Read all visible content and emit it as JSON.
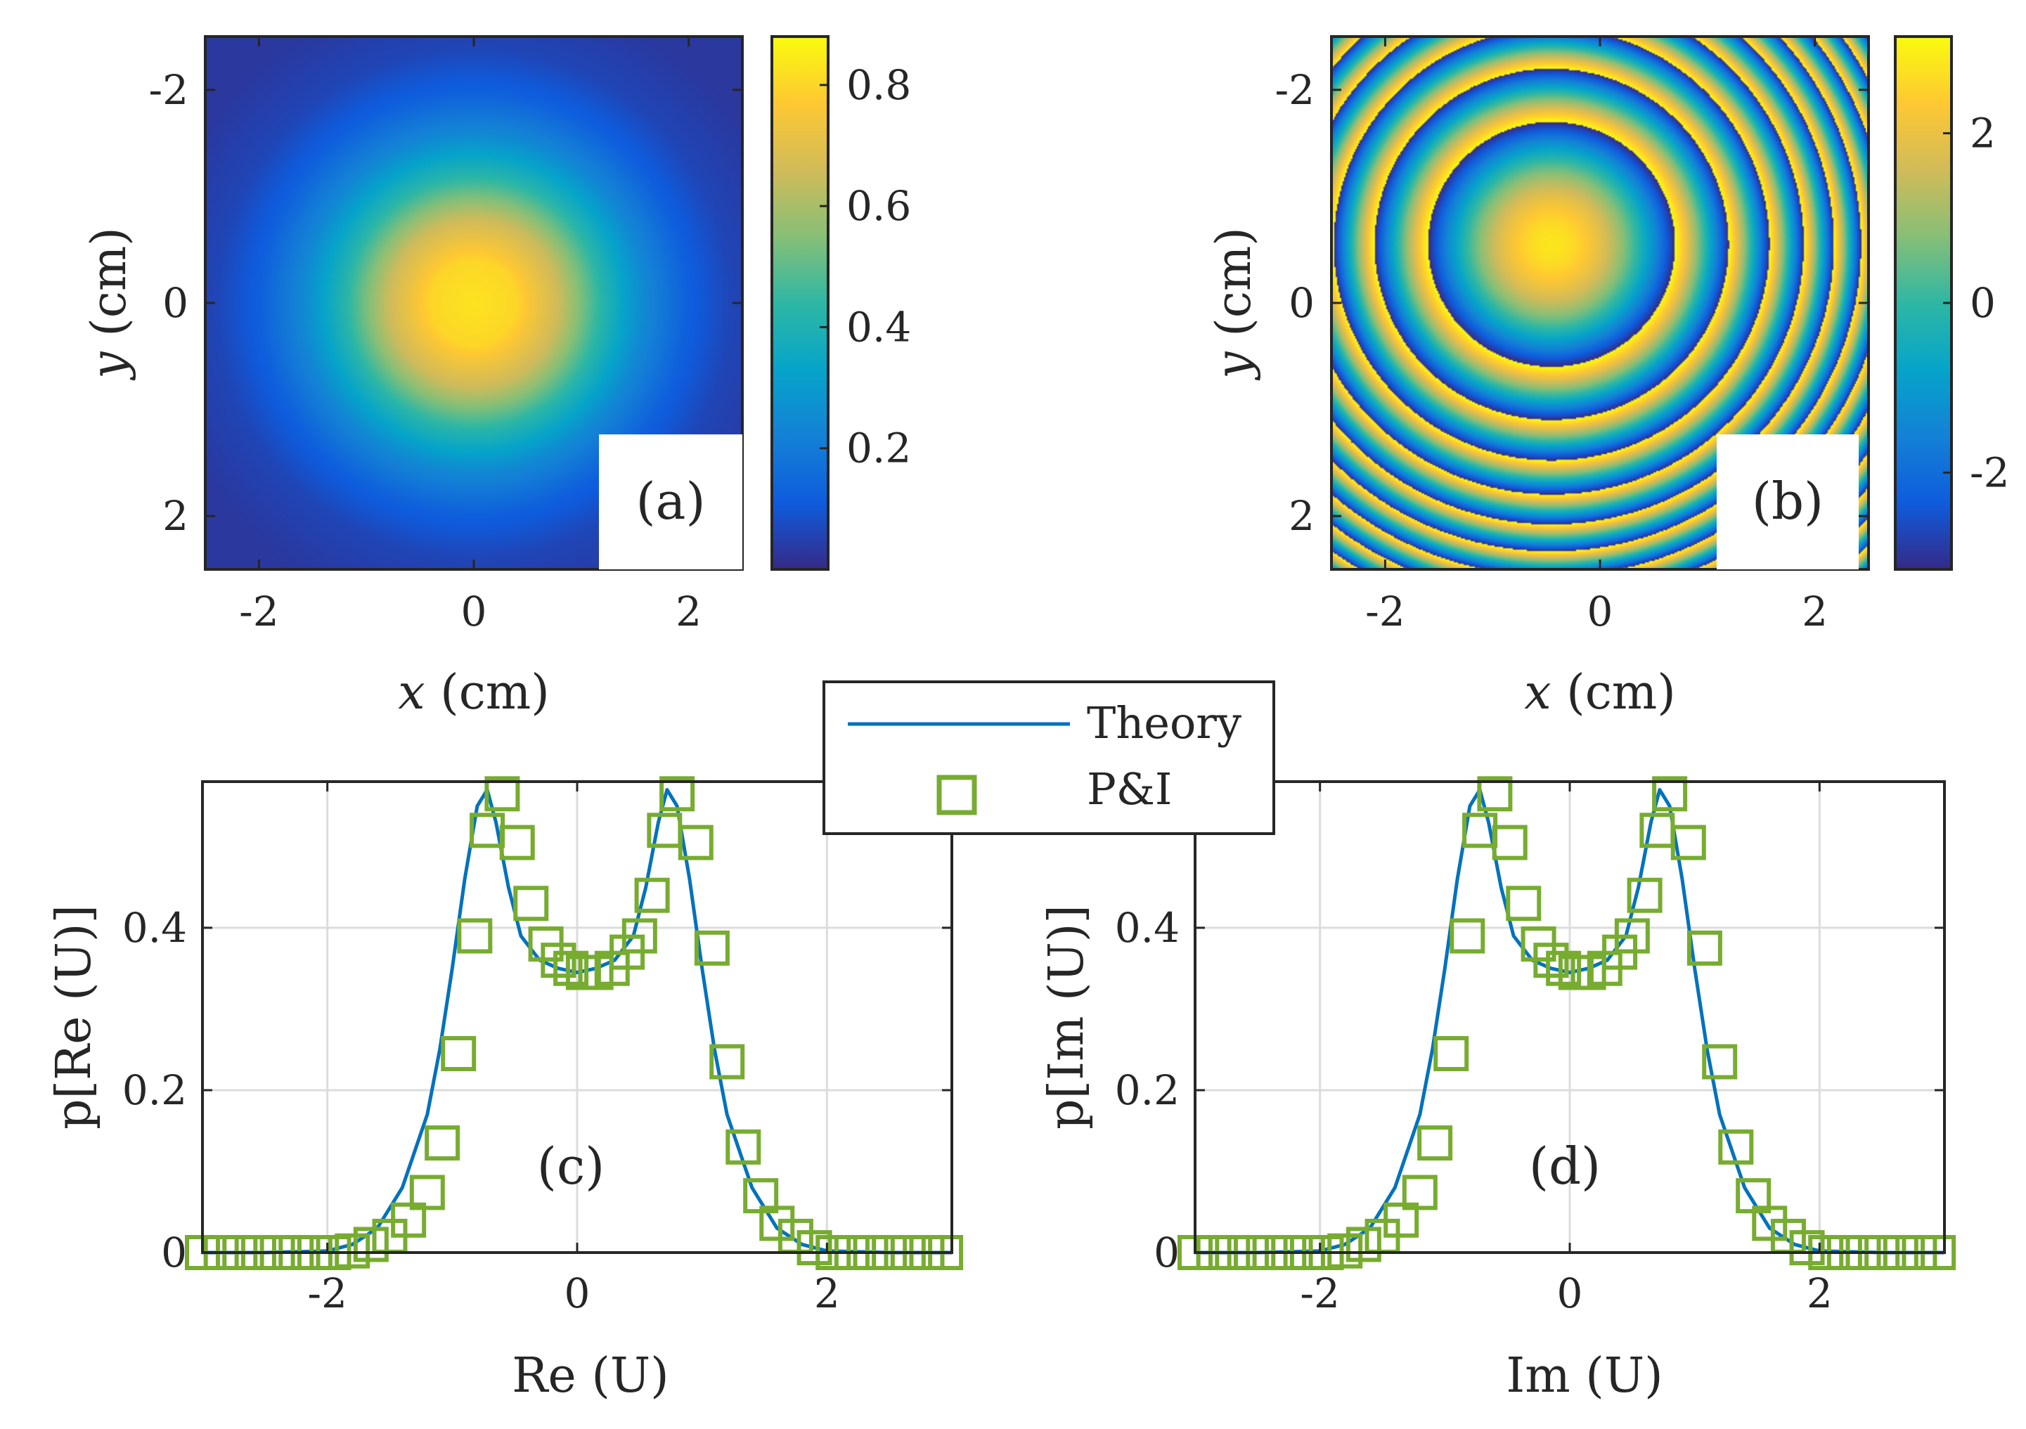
{
  "colors": {
    "theory_line": "#0072BD",
    "marker": "#77AC30",
    "grid": "#dcdcdc",
    "axis": "#262626",
    "parula_stops": [
      "#352a87",
      "#0f5cdd",
      "#1481d6",
      "#06a4ca",
      "#2eb7a4",
      "#87bf77",
      "#d1bb59",
      "#fec832",
      "#f9fb0e"
    ]
  },
  "legend": {
    "line_label": "Theory",
    "marker_label": "P&I"
  },
  "chart_data": [
    {
      "type": "heatmap",
      "panel": "(a)",
      "quantity": "intensity |U|^2, radial profile about center",
      "xlabel": {
        "var": "x",
        "unit": "(cm)"
      },
      "ylabel": {
        "var": "y",
        "unit": "(cm)"
      },
      "xlim": [
        -2.5,
        2.5
      ],
      "ylim": [
        2.5,
        -2.5
      ],
      "xticks": [
        "-2",
        "0",
        "2"
      ],
      "yticks": [
        "-2",
        "0",
        "2"
      ],
      "center": [
        0,
        0
      ],
      "radial_profile": {
        "r": [
          0,
          0.4,
          0.8,
          1.2,
          1.6,
          2.0,
          2.4,
          3.0
        ],
        "value": [
          0.83,
          0.8,
          0.65,
          0.42,
          0.24,
          0.12,
          0.06,
          0.03
        ]
      },
      "colorbar": {
        "min": 0,
        "max": 0.88,
        "ticks": [
          "0.2",
          "0.4",
          "0.6",
          "0.8"
        ]
      }
    },
    {
      "type": "heatmap",
      "panel": "(b)",
      "quantity": "phase (rad), concentric rings about off-center point",
      "xlabel": {
        "var": "x",
        "unit": "(cm)"
      },
      "ylabel": {
        "var": "y",
        "unit": "(cm)"
      },
      "xlim": [
        -2.5,
        2.5
      ],
      "ylim": [
        2.5,
        -2.5
      ],
      "xticks": [
        "-2",
        "0",
        "2"
      ],
      "yticks": [
        "-2",
        "0",
        "2"
      ],
      "center": [
        -0.45,
        -0.55
      ],
      "phase_model": {
        "phi0": 2.8,
        "quadratic_coeff": 4.5
      },
      "colorbar": {
        "min": -3.14,
        "max": 3.14,
        "ticks": [
          "-2",
          "0",
          "2"
        ]
      }
    },
    {
      "type": "line",
      "panel": "(c)",
      "xlabel": "Re (U)",
      "ylabel": "p[Re (U)]",
      "xlim": [
        -3,
        3
      ],
      "ylim": [
        0,
        0.58
      ],
      "xticks": [
        "-2",
        "0",
        "2"
      ],
      "yticks": [
        "0",
        "0.2",
        "0.4"
      ],
      "series": [
        {
          "name": "Theory",
          "x": [
            -3.0,
            -2.5,
            -2.0,
            -1.8,
            -1.6,
            -1.4,
            -1.2,
            -1.1,
            -1.0,
            -0.9,
            -0.8,
            -0.72,
            -0.65,
            -0.55,
            -0.45,
            -0.3,
            -0.15,
            0.0,
            0.15,
            0.3,
            0.45,
            0.55,
            0.65,
            0.72,
            0.8,
            0.9,
            1.0,
            1.1,
            1.2,
            1.4,
            1.6,
            1.8,
            2.0,
            2.5,
            3.0
          ],
          "y": [
            0.0,
            0.0,
            0.002,
            0.01,
            0.03,
            0.08,
            0.17,
            0.25,
            0.35,
            0.46,
            0.55,
            0.57,
            0.53,
            0.45,
            0.39,
            0.36,
            0.35,
            0.345,
            0.35,
            0.36,
            0.39,
            0.45,
            0.53,
            0.57,
            0.55,
            0.46,
            0.35,
            0.25,
            0.17,
            0.08,
            0.03,
            0.01,
            0.002,
            0.0,
            0.0
          ]
        },
        {
          "name": "P&I",
          "x": [
            -3.0,
            -2.85,
            -2.7,
            -2.55,
            -2.4,
            -2.25,
            -2.1,
            -1.95,
            -1.8,
            -1.65,
            -1.5,
            -1.35,
            -1.2,
            -1.08,
            -0.95,
            -0.82,
            -0.72,
            -0.6,
            -0.48,
            -0.37,
            -0.25,
            -0.15,
            -0.05,
            0.05,
            0.15,
            0.28,
            0.4,
            0.5,
            0.6,
            0.7,
            0.8,
            0.95,
            1.08,
            1.2,
            1.33,
            1.47,
            1.6,
            1.75,
            1.9,
            2.05,
            2.2,
            2.35,
            2.5,
            2.65,
            2.8,
            2.95
          ],
          "y": [
            0.0,
            0.0,
            0.0,
            0.0,
            0.0,
            0.0,
            0.0,
            0.0,
            0.002,
            0.01,
            0.02,
            0.04,
            0.074,
            0.135,
            0.245,
            0.39,
            0.52,
            0.565,
            0.505,
            0.43,
            0.38,
            0.36,
            0.35,
            0.345,
            0.345,
            0.35,
            0.37,
            0.39,
            0.44,
            0.52,
            0.565,
            0.505,
            0.375,
            0.235,
            0.13,
            0.07,
            0.036,
            0.02,
            0.006,
            0.0,
            0.0,
            0.0,
            0.0,
            0.0,
            0.0,
            0.0
          ]
        }
      ],
      "annotation": "(c)"
    },
    {
      "type": "line",
      "panel": "(d)",
      "xlabel": "Im (U)",
      "ylabel": "p[Im (U)]",
      "xlim": [
        -3,
        3
      ],
      "ylim": [
        0,
        0.58
      ],
      "xticks": [
        "-2",
        "0",
        "2"
      ],
      "yticks": [
        "0",
        "0.2",
        "0.4"
      ],
      "series": [
        {
          "name": "Theory",
          "x": [
            -3.0,
            -2.5,
            -2.0,
            -1.8,
            -1.6,
            -1.4,
            -1.2,
            -1.1,
            -1.0,
            -0.9,
            -0.8,
            -0.72,
            -0.65,
            -0.55,
            -0.45,
            -0.3,
            -0.15,
            0.0,
            0.15,
            0.3,
            0.45,
            0.55,
            0.65,
            0.72,
            0.8,
            0.9,
            1.0,
            1.1,
            1.2,
            1.4,
            1.6,
            1.8,
            2.0,
            2.5,
            3.0
          ],
          "y": [
            0.0,
            0.0,
            0.002,
            0.01,
            0.03,
            0.08,
            0.17,
            0.25,
            0.35,
            0.46,
            0.55,
            0.57,
            0.53,
            0.45,
            0.39,
            0.36,
            0.35,
            0.345,
            0.35,
            0.36,
            0.39,
            0.45,
            0.53,
            0.57,
            0.55,
            0.46,
            0.35,
            0.25,
            0.17,
            0.08,
            0.03,
            0.01,
            0.002,
            0.0,
            0.0
          ]
        },
        {
          "name": "P&I",
          "x": [
            -3.0,
            -2.85,
            -2.7,
            -2.55,
            -2.4,
            -2.25,
            -2.1,
            -1.95,
            -1.8,
            -1.65,
            -1.5,
            -1.35,
            -1.2,
            -1.08,
            -0.95,
            -0.82,
            -0.72,
            -0.6,
            -0.48,
            -0.37,
            -0.25,
            -0.15,
            -0.05,
            0.05,
            0.15,
            0.28,
            0.4,
            0.5,
            0.6,
            0.7,
            0.8,
            0.95,
            1.08,
            1.2,
            1.33,
            1.47,
            1.6,
            1.75,
            1.9,
            2.05,
            2.2,
            2.35,
            2.5,
            2.65,
            2.8,
            2.95
          ],
          "y": [
            0.0,
            0.0,
            0.0,
            0.0,
            0.0,
            0.0,
            0.0,
            0.0,
            0.002,
            0.01,
            0.02,
            0.04,
            0.074,
            0.135,
            0.245,
            0.39,
            0.52,
            0.565,
            0.505,
            0.43,
            0.38,
            0.36,
            0.35,
            0.345,
            0.345,
            0.35,
            0.37,
            0.39,
            0.44,
            0.52,
            0.565,
            0.505,
            0.375,
            0.235,
            0.13,
            0.07,
            0.036,
            0.02,
            0.006,
            0.0,
            0.0,
            0.0,
            0.0,
            0.0,
            0.0,
            0.0
          ]
        }
      ],
      "annotation": "(d)"
    }
  ]
}
